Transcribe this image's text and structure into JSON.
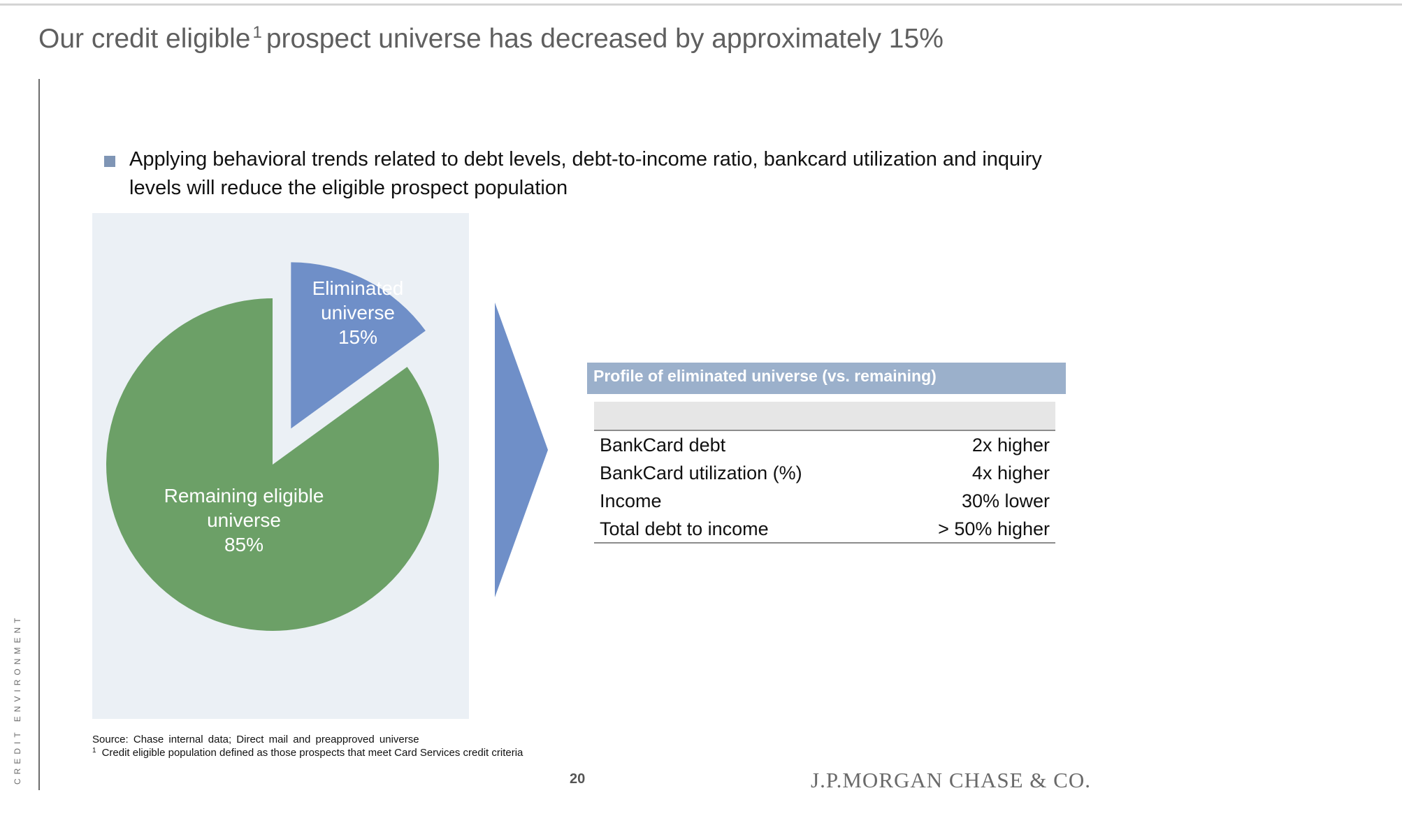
{
  "title": {
    "text_before": "Our credit eligible",
    "superscript": "1",
    "text_after": "prospect universe has decreased by approximately 15%"
  },
  "side_label": "CREDIT ENVIRONMENT",
  "bullet": "Applying behavioral trends related to debt levels, debt-to-income ratio, bankcard utilization and inquiry levels will reduce the eligible prospect population",
  "chart_data": {
    "type": "pie",
    "title": "",
    "slices": [
      {
        "label": "Eliminated universe",
        "value": 15,
        "value_label": "15%",
        "color": "#6f8fc8",
        "exploded": true
      },
      {
        "label": "Remaining eligible universe",
        "value": 85,
        "value_label": "85%",
        "color": "#6ca067",
        "exploded": false
      }
    ],
    "legend": "none",
    "background_color": "#ebf0f5",
    "arrow_color": "#6f8fc8"
  },
  "pie_labels": {
    "eliminated": {
      "line1": "Eliminated",
      "line2": "universe",
      "line3": "15%"
    },
    "remaining": {
      "line1": "Remaining eligible",
      "line2": "universe",
      "line3": "85%"
    }
  },
  "profile_table": {
    "header": "Profile of eliminated universe (vs. remaining)",
    "rows": [
      {
        "label": "BankCard debt",
        "value": "2x higher"
      },
      {
        "label": "BankCard utilization (%)",
        "value": "4x higher"
      },
      {
        "label": "Income",
        "value": "30% lower"
      },
      {
        "label": "Total debt to income",
        "value": "> 50% higher"
      }
    ]
  },
  "source": "Source: Chase internal data; Direct mail and preapproved universe",
  "footnote": {
    "marker": "1",
    "text": "Credit eligible population defined as those prospects that meet Card Services credit criteria"
  },
  "page_number": "20",
  "logo_text": "J.P.MORGAN CHASE & CO.",
  "colors": {
    "title": "#5f5f5f",
    "table_header": "#9bb0cb",
    "bullet_square": "#7f95b5"
  }
}
